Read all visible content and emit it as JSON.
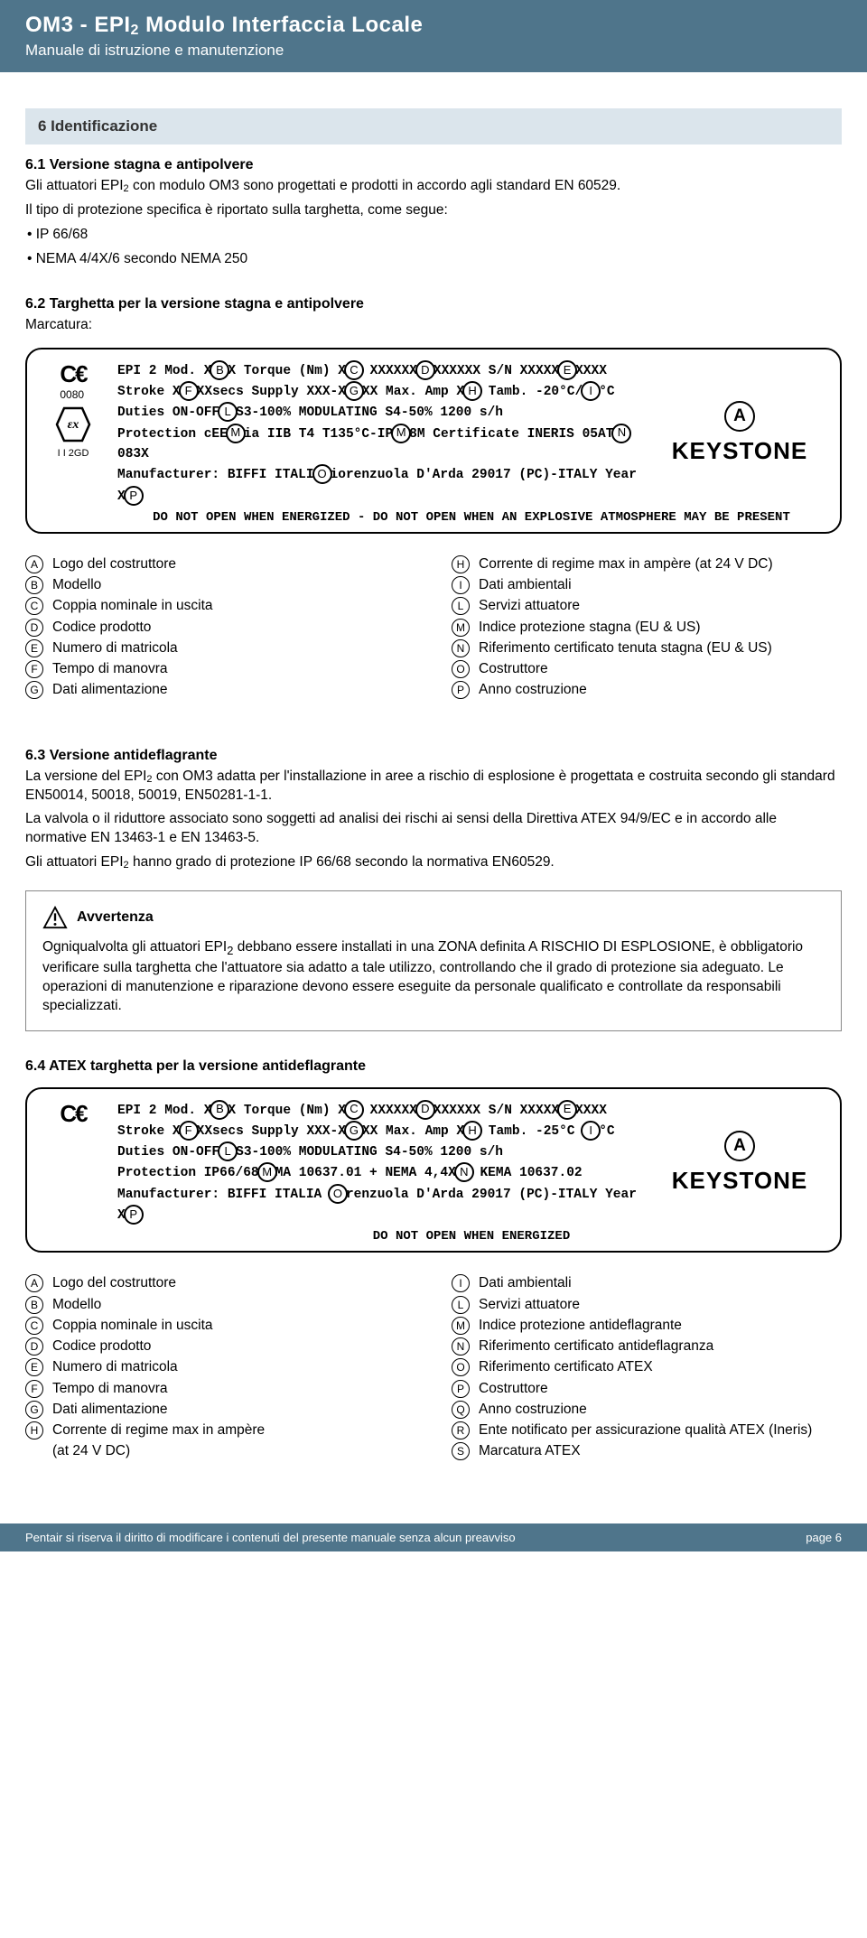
{
  "header": {
    "title_pre": "OM3 - EPI",
    "title_sub": "2",
    "title_post": " Modulo Interfaccia Locale",
    "subtitle": "Manuale di istruzione e manutenzione"
  },
  "section6": {
    "box": "6 Identificazione",
    "s61_head": "6.1 Versione stagna e antipolvere",
    "s61_p1a": "Gli attuatori EPI",
    "s61_p1b": " con modulo OM3 sono progettati e prodotti in accordo agli standard EN 60529.",
    "s61_p2": "Il tipo di protezione specifica è riportato sulla targhetta, come segue:",
    "s61_b1": "• IP 66/68",
    "s61_b2": "• NEMA 4/4X/6 secondo NEMA 250",
    "s62_head": "6.2 Targhetta per la versione stagna e antipolvere",
    "s62_mark": "Marcatura:"
  },
  "nameplate1": {
    "ce_num": "0080",
    "ex_label": "I I 2GD",
    "line1_a": "EPI 2 Mod. X",
    "line1_b": "X  Torque (Nm) X",
    "line1_c": "  XXXXXX",
    "line1_d": "XXXXXX  S/N XXXXX",
    "line1_e": "XXXX",
    "line2_a": "Stroke X",
    "line2_b": "XXsecs   Supply XXX-X",
    "line2_c": "XX Max. Amp X",
    "line2_d": "  Tamb. -20°C/",
    "line2_e": "°C",
    "line3_a": "Duties ON-OFF",
    "line3_b": "S3-100%  MODULATING S4-50% 1200 s/h",
    "line4_a": "Protection cEE",
    "line4_b": "ia IIB T4 T135°C-IP",
    "line4_c": "8M  Certificate  INERIS 05AT",
    "line4_d": "083X",
    "line5_a": "Manufacturer: BIFFI ITALI",
    "line5_b": "iorenzuola D'Arda 29017 (PC)-ITALY   Year X",
    "line5_c": "",
    "bottom": "DO NOT OPEN WHEN ENERGIZED - DO NOT OPEN WHEN AN EXPLOSIVE ATMOSPHERE MAY BE PRESENT"
  },
  "legend1": {
    "left": [
      {
        "l": "A",
        "t": "Logo del costruttore"
      },
      {
        "l": "B",
        "t": "Modello"
      },
      {
        "l": "C",
        "t": "Coppia nominale in uscita"
      },
      {
        "l": "D",
        "t": "Codice prodotto"
      },
      {
        "l": "E",
        "t": "Numero di matricola"
      },
      {
        "l": "F",
        "t": "Tempo di manovra"
      },
      {
        "l": "G",
        "t": "Dati alimentazione"
      }
    ],
    "right": [
      {
        "l": "H",
        "t": "Corrente di regime max in ampère (at 24 V DC)"
      },
      {
        "l": "I",
        "t": "Dati ambientali"
      },
      {
        "l": "L",
        "t": "Servizi attuatore"
      },
      {
        "l": "M",
        "t": "Indice protezione stagna (EU & US)"
      },
      {
        "l": "N",
        "t": "Riferimento certificato tenuta stagna (EU & US)"
      },
      {
        "l": "O",
        "t": "Costruttore"
      },
      {
        "l": "P",
        "t": "Anno costruzione"
      }
    ]
  },
  "s63": {
    "head": "6.3 Versione antideflagrante",
    "p1a": "La versione del EPI",
    "p1b": " con OM3 adatta per l'installazione in aree a rischio di esplosione è progettata e costruita secondo gli standard EN50014, 50018, 50019, EN50281-1-1.",
    "p2": "La valvola o il riduttore associato sono soggetti ad analisi dei rischi ai sensi della Direttiva ATEX 94/9/EC e in accordo alle normative EN 13463-1 e EN 13463-5.",
    "p3a": "Gli attuatori EPI",
    "p3b": " hanno grado di protezione IP 66/68 secondo la normativa EN60529."
  },
  "warn": {
    "title": "Avvertenza",
    "body_a": "Ogniqualvolta gli attuatori EPI",
    "body_b": " debbano essere installati in una ZONA definita A RISCHIO DI ESPLOSIONE, è obbligatorio verificare sulla targhetta che l'attuatore sia adatto a tale utilizzo, controllando che il grado di protezione sia adeguato. Le operazioni di manutenzione e riparazione devono essere eseguite da personale qualificato e controllate da responsabili specializzati."
  },
  "s64_head": "6.4 ATEX targhetta per la versione antideflagrante",
  "nameplate2": {
    "line1_a": "EPI 2 Mod. X",
    "line1_b": "X  Torque (Nm) X",
    "line1_c": "  XXXXXX",
    "line1_d": "XXXXXX  S/N XXXXX",
    "line1_e": "XXXX",
    "line2_a": "Stroke X",
    "line2_b": "XXsecs   Supply XXX-X",
    "line2_c": "XX Max. Amp X",
    "line2_d": "  Tamb. -25°C ",
    "line2_e": "°C",
    "line3_a": "Duties ON-OFF",
    "line3_b": "S3-100%  MODULATING S4-50% 1200 s/h",
    "line4_a": "Protection IP66/68",
    "line4_b": "MA 10637.01 + NEMA 4,4X",
    "line4_c": " KEMA 10637.02",
    "line5_a": "Manufacturer: BIFFI ITALIA ",
    "line5_b": "renzuola D'Arda 29017 (PC)-ITALY   Year X",
    "line5_c": "",
    "bottom": "DO NOT OPEN WHEN ENERGIZED"
  },
  "legend2": {
    "left": [
      {
        "l": "A",
        "t": "Logo del costruttore"
      },
      {
        "l": "B",
        "t": "Modello"
      },
      {
        "l": "C",
        "t": "Coppia nominale in uscita"
      },
      {
        "l": "D",
        "t": "Codice prodotto"
      },
      {
        "l": "E",
        "t": "Numero di matricola"
      },
      {
        "l": "F",
        "t": "Tempo di manovra"
      },
      {
        "l": "G",
        "t": "Dati alimentazione"
      },
      {
        "l": "H",
        "t": "Corrente di regime max in ampère"
      },
      {
        "l": "",
        "t": "(at 24 V DC)"
      }
    ],
    "right": [
      {
        "l": "I",
        "t": "Dati ambientali"
      },
      {
        "l": "L",
        "t": "Servizi attuatore"
      },
      {
        "l": "M",
        "t": "Indice protezione antideflagrante"
      },
      {
        "l": "N",
        "t": "Riferimento certificato antideflagranza"
      },
      {
        "l": "O",
        "t": "Riferimento certificato ATEX"
      },
      {
        "l": "P",
        "t": "Costruttore"
      },
      {
        "l": "Q",
        "t": "Anno costruzione"
      },
      {
        "l": "R",
        "t": "Ente notificato per assicurazione qualità ATEX (Ineris)"
      },
      {
        "l": "S",
        "t": "Marcatura ATEX"
      }
    ]
  },
  "footer": {
    "left": "Pentair si riserva il diritto di modificare i contenuti del presente manuale senza alcun preavviso",
    "right": "page 6"
  },
  "brand": "KEYSTONE",
  "markA": "A"
}
